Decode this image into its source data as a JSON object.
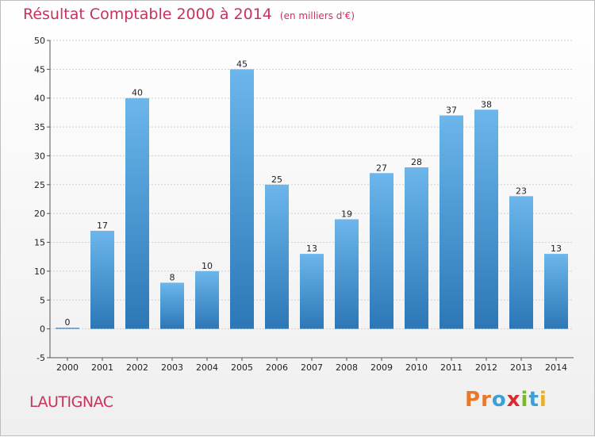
{
  "header": {
    "title": "Résultat Comptable 2000 à 2014",
    "unit": "(en milliers d'€)"
  },
  "footer": {
    "commune": "LAUTIGNAC",
    "logo_letters": [
      "P",
      "r",
      "o",
      "x",
      "i",
      "t",
      "i"
    ]
  },
  "colors": {
    "title": "#c8325a",
    "bar_top": "#6cb6ec",
    "bar_bottom": "#2d77b6",
    "grid": "#cfcfcf",
    "axis": "#555555",
    "logo": [
      "#e8792a",
      "#e8792a",
      "#3aa0d8",
      "#d92b2b",
      "#79b928",
      "#3aa0d8",
      "#e8b02a"
    ]
  },
  "chart_data": {
    "type": "bar",
    "title": "Résultat Comptable 2000 à 2014",
    "xlabel": "",
    "ylabel": "",
    "categories": [
      "2000",
      "2001",
      "2002",
      "2003",
      "2004",
      "2005",
      "2006",
      "2007",
      "2008",
      "2009",
      "2010",
      "2011",
      "2012",
      "2013",
      "2014"
    ],
    "values": [
      0,
      17,
      40,
      8,
      10,
      45,
      25,
      13,
      19,
      27,
      28,
      37,
      38,
      23,
      13
    ],
    "ylim": [
      -5,
      50
    ],
    "yticks": [
      -5,
      0,
      5,
      10,
      15,
      20,
      25,
      30,
      35,
      40,
      45,
      50
    ],
    "grid": true,
    "data_labels": true
  }
}
